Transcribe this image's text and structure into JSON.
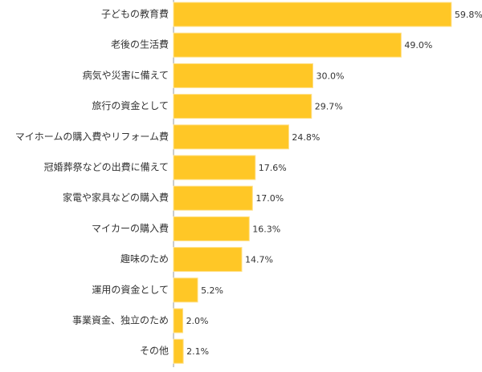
{
  "chart_data": {
    "type": "bar",
    "orientation": "horizontal",
    "categories": [
      "子どもの教育費",
      "老後の生活費",
      "病気や災害に備えて",
      "旅行の資金として",
      "マイホームの購入費やリフォーム費",
      "冠婚葬祭などの出費に備えて",
      "家電や家具などの購入費",
      "マイカーの購入費",
      "趣味のため",
      "運用の資金として",
      "事業資金、独立のため",
      "その他"
    ],
    "values": [
      59.8,
      49.0,
      30.0,
      29.7,
      24.8,
      17.6,
      17.0,
      16.3,
      14.7,
      5.2,
      2.0,
      2.1
    ],
    "value_labels": [
      "59.8%",
      "49.0%",
      "30.0%",
      "29.7%",
      "24.8%",
      "17.6%",
      "17.0%",
      "16.3%",
      "14.7%",
      "5.2%",
      "2.0%",
      "2.1%"
    ],
    "color": "#ffc726",
    "xlim": [
      0,
      60
    ]
  }
}
